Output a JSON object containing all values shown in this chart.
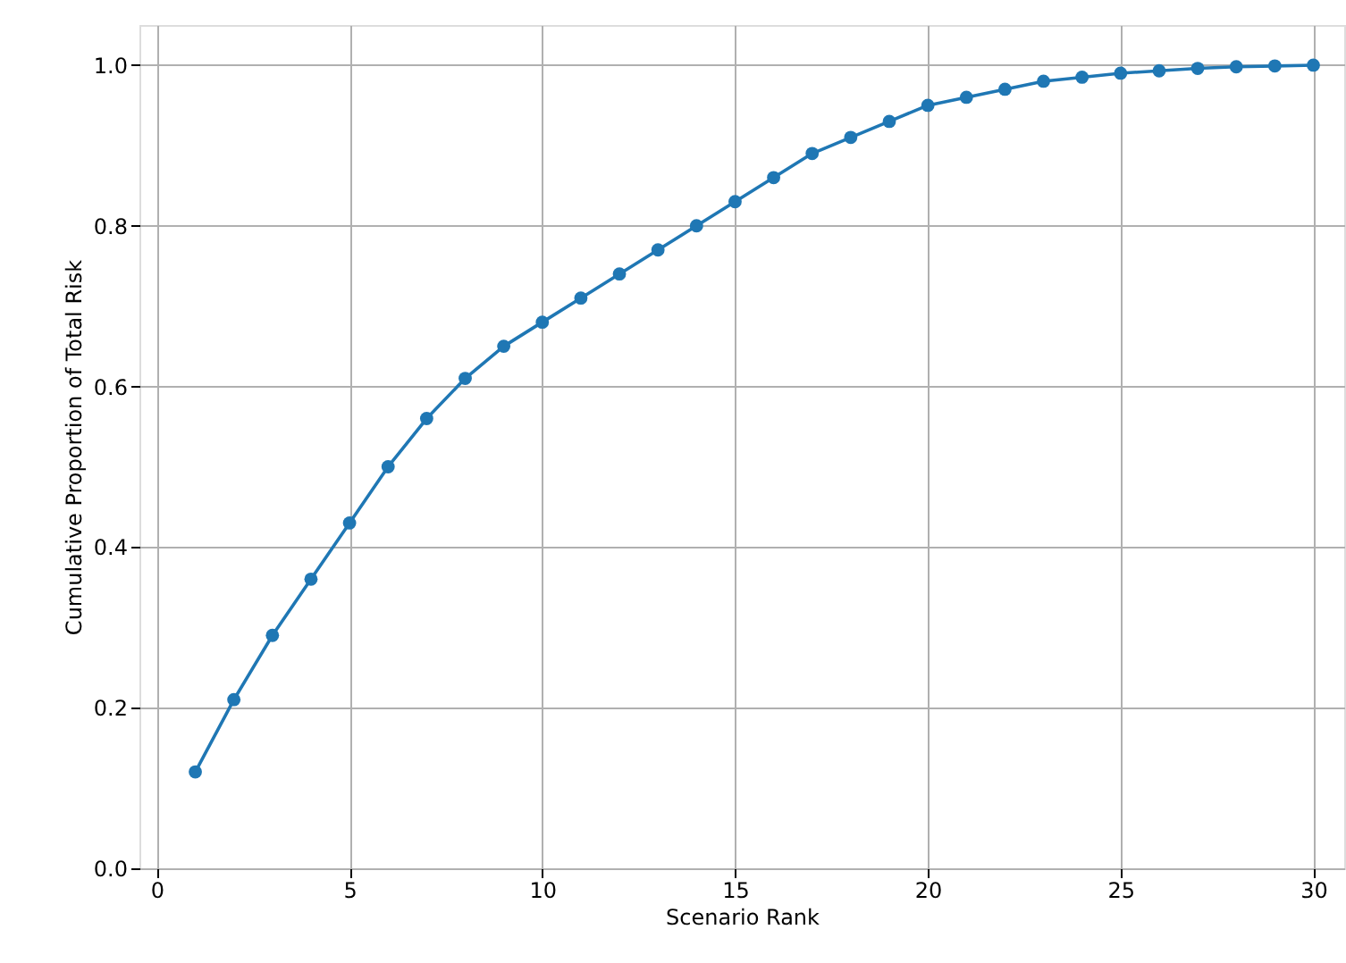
{
  "chart_data": {
    "type": "line",
    "xlabel": "Scenario Rank",
    "ylabel": "Cumulative Proportion of Total Risk",
    "x": [
      1,
      2,
      3,
      4,
      5,
      6,
      7,
      8,
      9,
      10,
      11,
      12,
      13,
      14,
      15,
      16,
      17,
      18,
      19,
      20,
      21,
      22,
      23,
      24,
      25,
      26,
      27,
      28,
      29,
      30
    ],
    "series": [
      {
        "color": "#1f77b4",
        "values": [
          0.12,
          0.21,
          0.29,
          0.36,
          0.43,
          0.5,
          0.56,
          0.61,
          0.65,
          0.68,
          0.71,
          0.74,
          0.77,
          0.8,
          0.83,
          0.86,
          0.89,
          0.91,
          0.93,
          0.95,
          0.96,
          0.97,
          0.98,
          0.985,
          0.99,
          0.993,
          0.996,
          0.998,
          0.999,
          1.0
        ]
      }
    ],
    "xlim": [
      -0.45,
      30.8
    ],
    "ylim": [
      0,
      1.05
    ],
    "xticks": [
      0,
      5,
      10,
      15,
      20,
      25,
      30
    ],
    "yticks": [
      {
        "value": 0,
        "label": "0.0"
      },
      0.2,
      0.4,
      0.6,
      0.8,
      {
        "value": 1,
        "label": "1.0"
      }
    ],
    "grid": true,
    "marker": "circle",
    "line_style": "solid"
  }
}
